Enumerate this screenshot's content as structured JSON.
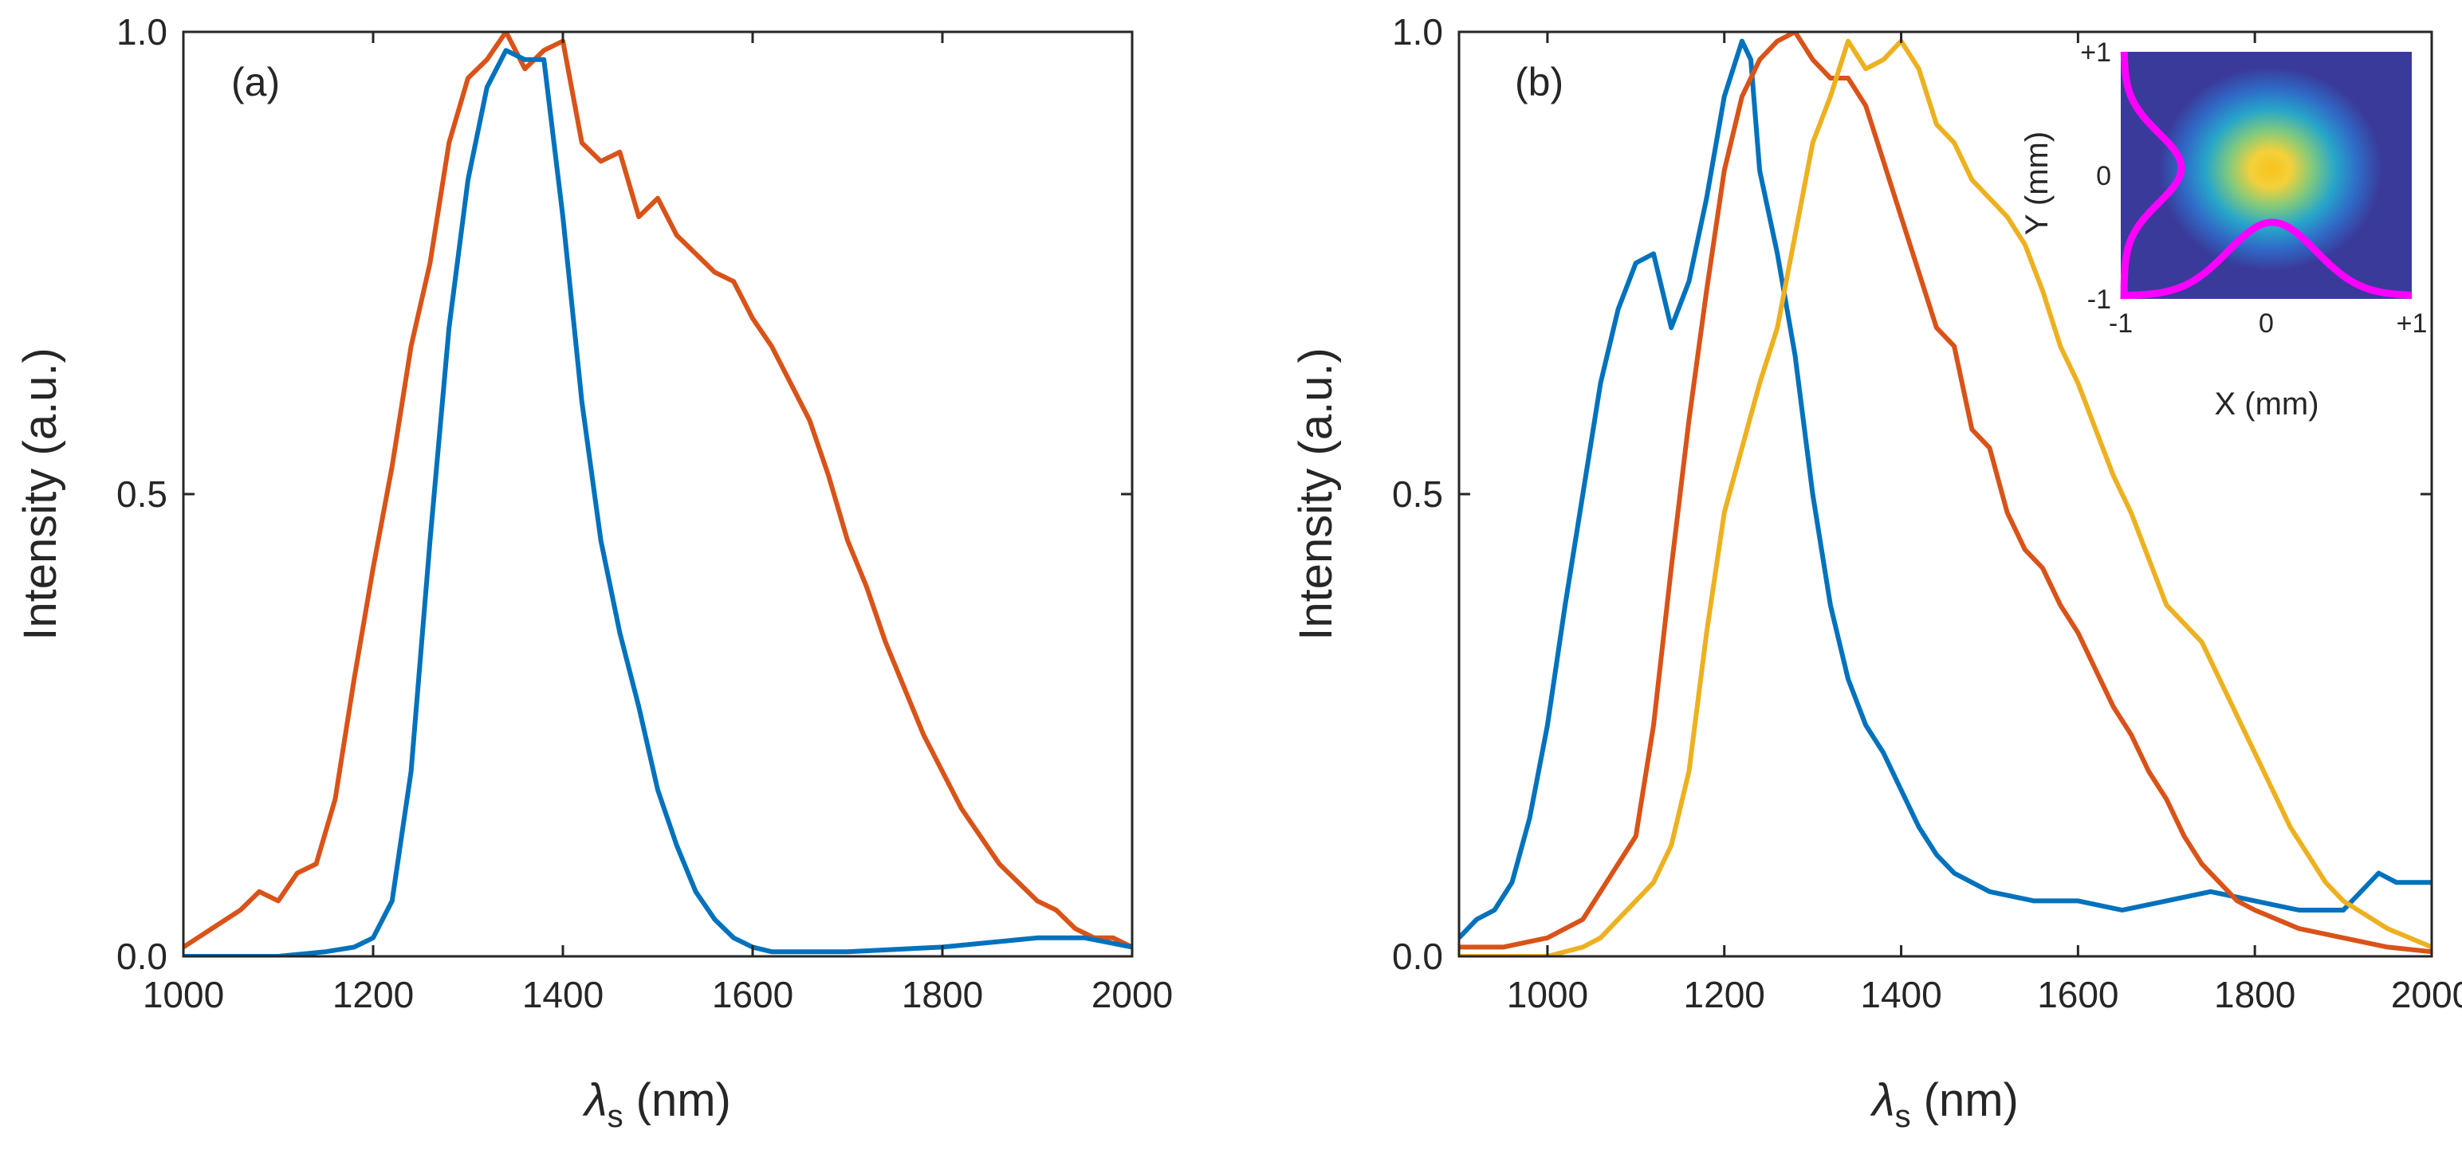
{
  "colors": {
    "blue": "#0072bd",
    "orange": "#d95319",
    "yellow": "#edb120",
    "magenta": "#ff00ff",
    "axis": "#262626"
  },
  "chart_data": [
    {
      "type": "line",
      "panel_label": "(a)",
      "xlabel": "λ",
      "xlabel_sub": "s",
      "xlabel_unit": "(nm)",
      "ylabel": "Intensity (a.u.)",
      "xlim": [
        1000,
        2000
      ],
      "ylim": [
        0,
        1
      ],
      "xticks": [
        "1000",
        "1200",
        "1400",
        "1600",
        "1800",
        "2000"
      ],
      "yticks": [
        "0.0",
        "0.5",
        "1.0"
      ],
      "grid": false,
      "series": [
        {
          "color": "orange",
          "x": [
            1000,
            1030,
            1060,
            1080,
            1100,
            1120,
            1140,
            1160,
            1180,
            1200,
            1220,
            1240,
            1260,
            1280,
            1300,
            1320,
            1340,
            1360,
            1380,
            1400,
            1420,
            1440,
            1460,
            1480,
            1500,
            1520,
            1540,
            1560,
            1580,
            1600,
            1620,
            1640,
            1660,
            1680,
            1700,
            1720,
            1740,
            1760,
            1780,
            1800,
            1820,
            1840,
            1860,
            1880,
            1900,
            1920,
            1940,
            1960,
            1980,
            2000
          ],
          "y": [
            0.01,
            0.03,
            0.05,
            0.07,
            0.06,
            0.09,
            0.1,
            0.17,
            0.3,
            0.42,
            0.53,
            0.66,
            0.75,
            0.88,
            0.95,
            0.97,
            1.0,
            0.96,
            0.98,
            0.99,
            0.88,
            0.86,
            0.87,
            0.8,
            0.82,
            0.78,
            0.76,
            0.74,
            0.73,
            0.69,
            0.66,
            0.62,
            0.58,
            0.52,
            0.45,
            0.4,
            0.34,
            0.29,
            0.24,
            0.2,
            0.16,
            0.13,
            0.1,
            0.08,
            0.06,
            0.05,
            0.03,
            0.02,
            0.02,
            0.01
          ]
        },
        {
          "color": "blue",
          "x": [
            1000,
            1100,
            1150,
            1180,
            1200,
            1220,
            1240,
            1260,
            1280,
            1300,
            1320,
            1340,
            1360,
            1380,
            1400,
            1420,
            1440,
            1460,
            1480,
            1500,
            1520,
            1540,
            1560,
            1580,
            1600,
            1620,
            1640,
            1700,
            1800,
            1900,
            1950,
            2000
          ],
          "y": [
            0.0,
            0.0,
            0.005,
            0.01,
            0.02,
            0.06,
            0.2,
            0.45,
            0.68,
            0.84,
            0.94,
            0.98,
            0.97,
            0.97,
            0.8,
            0.6,
            0.45,
            0.35,
            0.27,
            0.18,
            0.12,
            0.07,
            0.04,
            0.02,
            0.01,
            0.005,
            0.005,
            0.005,
            0.01,
            0.02,
            0.02,
            0.01
          ]
        }
      ]
    },
    {
      "type": "line",
      "panel_label": "(b)",
      "xlabel": "λ",
      "xlabel_sub": "s",
      "xlabel_unit": "(nm)",
      "ylabel": "Intensity (a.u.)",
      "xlim": [
        900,
        2000
      ],
      "ylim": [
        0,
        1
      ],
      "xticks": [
        "1000",
        "1200",
        "1400",
        "1600",
        "1800",
        "2000"
      ],
      "yticks": [
        "0.0",
        "0.5",
        "1.0"
      ],
      "grid": false,
      "series": [
        {
          "color": "blue",
          "x": [
            900,
            920,
            940,
            960,
            980,
            1000,
            1020,
            1040,
            1060,
            1080,
            1100,
            1120,
            1130,
            1140,
            1160,
            1180,
            1200,
            1220,
            1230,
            1240,
            1260,
            1280,
            1300,
            1320,
            1340,
            1360,
            1380,
            1400,
            1420,
            1440,
            1460,
            1500,
            1550,
            1600,
            1650,
            1700,
            1750,
            1800,
            1850,
            1900,
            1920,
            1940,
            1960,
            2000
          ],
          "y": [
            0.02,
            0.04,
            0.05,
            0.08,
            0.15,
            0.25,
            0.38,
            0.5,
            0.62,
            0.7,
            0.75,
            0.76,
            0.72,
            0.68,
            0.73,
            0.82,
            0.93,
            0.99,
            0.97,
            0.85,
            0.76,
            0.65,
            0.5,
            0.38,
            0.3,
            0.25,
            0.22,
            0.18,
            0.14,
            0.11,
            0.09,
            0.07,
            0.06,
            0.06,
            0.05,
            0.06,
            0.07,
            0.06,
            0.05,
            0.05,
            0.07,
            0.09,
            0.08,
            0.08
          ]
        },
        {
          "color": "orange",
          "x": [
            900,
            950,
            1000,
            1040,
            1060,
            1080,
            1100,
            1120,
            1140,
            1160,
            1180,
            1200,
            1220,
            1240,
            1260,
            1280,
            1300,
            1320,
            1340,
            1360,
            1380,
            1400,
            1420,
            1440,
            1460,
            1480,
            1500,
            1520,
            1540,
            1560,
            1580,
            1600,
            1620,
            1640,
            1660,
            1680,
            1700,
            1720,
            1740,
            1760,
            1780,
            1800,
            1850,
            1900,
            1950,
            2000
          ],
          "y": [
            0.01,
            0.01,
            0.02,
            0.04,
            0.07,
            0.1,
            0.13,
            0.25,
            0.42,
            0.58,
            0.72,
            0.85,
            0.93,
            0.97,
            0.99,
            1.0,
            0.97,
            0.95,
            0.95,
            0.92,
            0.86,
            0.8,
            0.74,
            0.68,
            0.66,
            0.57,
            0.55,
            0.48,
            0.44,
            0.42,
            0.38,
            0.35,
            0.31,
            0.27,
            0.24,
            0.2,
            0.17,
            0.13,
            0.1,
            0.08,
            0.06,
            0.05,
            0.03,
            0.02,
            0.01,
            0.005
          ]
        },
        {
          "color": "yellow",
          "x": [
            900,
            1000,
            1040,
            1060,
            1080,
            1100,
            1120,
            1140,
            1160,
            1180,
            1200,
            1220,
            1240,
            1260,
            1280,
            1300,
            1320,
            1340,
            1360,
            1380,
            1400,
            1420,
            1440,
            1460,
            1480,
            1500,
            1520,
            1540,
            1560,
            1580,
            1600,
            1620,
            1640,
            1660,
            1680,
            1700,
            1720,
            1740,
            1760,
            1780,
            1800,
            1820,
            1840,
            1860,
            1880,
            1900,
            1950,
            2000
          ],
          "y": [
            0.0,
            0.0,
            0.01,
            0.02,
            0.04,
            0.06,
            0.08,
            0.12,
            0.2,
            0.35,
            0.48,
            0.55,
            0.62,
            0.68,
            0.78,
            0.88,
            0.93,
            0.99,
            0.96,
            0.97,
            0.99,
            0.96,
            0.9,
            0.88,
            0.84,
            0.82,
            0.8,
            0.77,
            0.72,
            0.66,
            0.62,
            0.57,
            0.52,
            0.48,
            0.43,
            0.38,
            0.36,
            0.34,
            0.3,
            0.26,
            0.22,
            0.18,
            0.14,
            0.11,
            0.08,
            0.06,
            0.03,
            0.01
          ]
        }
      ],
      "inset": {
        "xlabel": "X (mm)",
        "ylabel": "Y (mm)",
        "xlim": [
          -1,
          1
        ],
        "ylim": [
          -1,
          1
        ],
        "xticks": [
          "-1",
          "0",
          "+1"
        ],
        "yticks": [
          "-1",
          "0",
          "+1"
        ],
        "background_color": "#3a3a9a",
        "profile_color": "magenta"
      }
    }
  ]
}
